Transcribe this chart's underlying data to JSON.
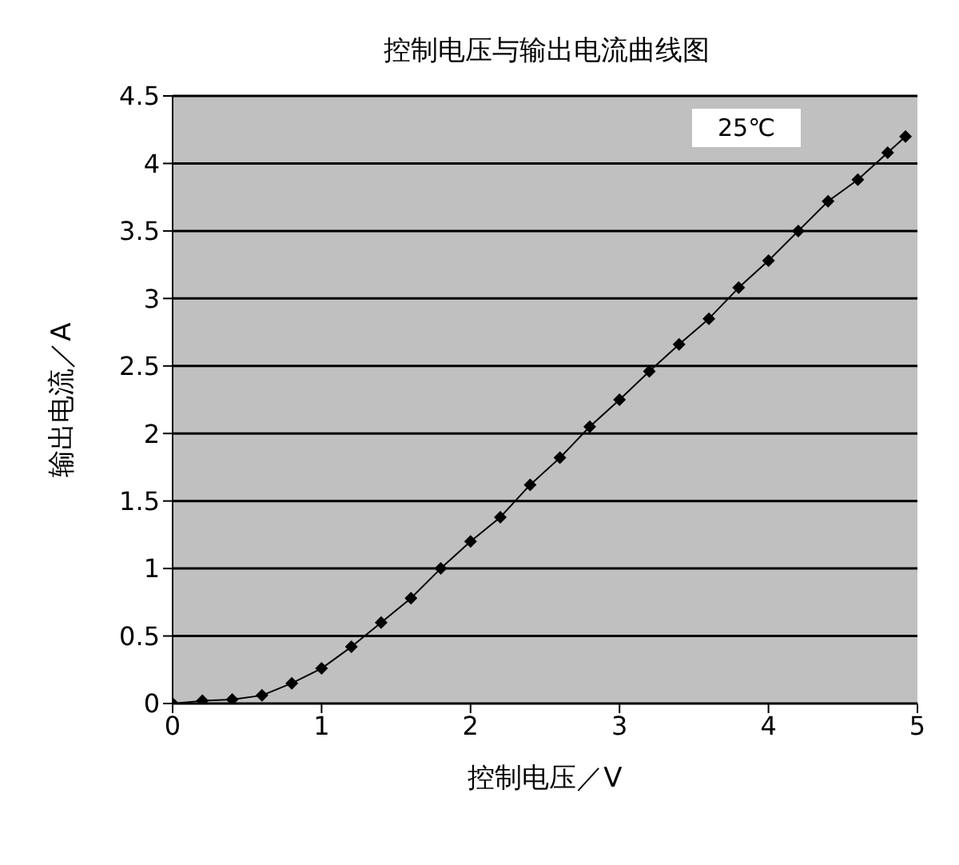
{
  "chart_data": {
    "type": "line",
    "title": "控制电压与输出电流曲线图",
    "xlabel": "控制电压／V",
    "ylabel": "输出电流／A",
    "annotations": [
      "25℃"
    ],
    "x": [
      0,
      0.2,
      0.4,
      0.6,
      0.8,
      1.0,
      1.2,
      1.4,
      1.6,
      1.8,
      2.0,
      2.2,
      2.4,
      2.6,
      2.8,
      3.0,
      3.2,
      3.4,
      3.6,
      3.8,
      4.0,
      4.2,
      4.4,
      4.6,
      4.8,
      4.92
    ],
    "series": [
      {
        "color": "#000000",
        "values": [
          0,
          0.02,
          0.03,
          0.06,
          0.15,
          0.26,
          0.42,
          0.6,
          0.78,
          1.0,
          1.2,
          1.38,
          1.62,
          1.82,
          2.05,
          2.25,
          2.46,
          2.66,
          2.85,
          3.08,
          3.28,
          3.5,
          3.72,
          3.88,
          4.08,
          4.2
        ]
      }
    ],
    "xlim": [
      0,
      5
    ],
    "xticks": [
      0,
      1,
      2,
      3,
      4,
      5
    ],
    "ylim": [
      0,
      4.5
    ],
    "yticks": [
      0,
      0.5,
      1,
      1.5,
      2,
      2.5,
      3,
      3.5,
      4,
      4.5
    ],
    "grid": "y",
    "marker": "diamond",
    "line_style": "solid"
  }
}
